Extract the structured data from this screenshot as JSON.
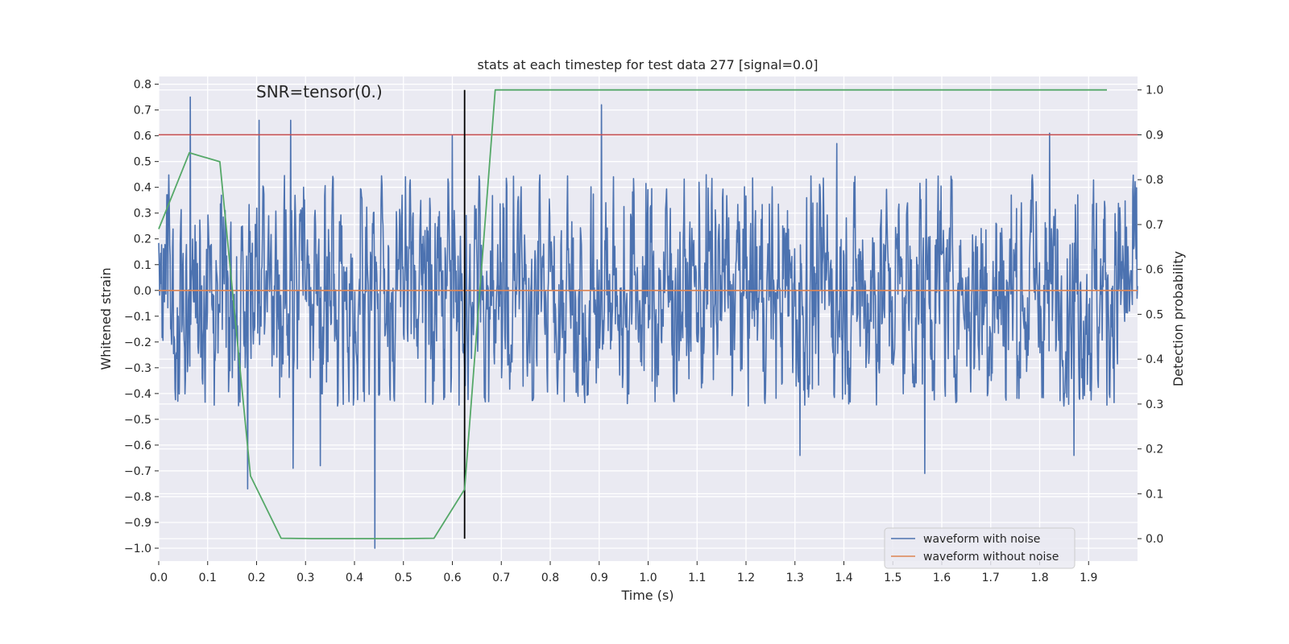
{
  "chart_data": {
    "type": "line",
    "title": "stats at each timestep for test data 277 [signal=0.0]",
    "annotation": "SNR=tensor(0.)",
    "xlabel": "Time (s)",
    "ylabel_left": "Whitened strain",
    "ylabel_right": "Detection probability",
    "xlim": [
      0.0,
      2.0
    ],
    "ylim_left": [
      -1.05,
      0.83
    ],
    "ylim_right": [
      -0.05,
      1.03
    ],
    "x_ticks": [
      "0.0",
      "0.1",
      "0.2",
      "0.3",
      "0.4",
      "0.5",
      "0.6",
      "0.7",
      "0.8",
      "0.9",
      "1.0",
      "1.1",
      "1.2",
      "1.3",
      "1.4",
      "1.5",
      "1.6",
      "1.7",
      "1.8",
      "1.9"
    ],
    "y_ticks_left": [
      "0.8",
      "0.7",
      "0.6",
      "0.5",
      "0.4",
      "0.3",
      "0.2",
      "0.1",
      "0.0",
      "−0.1",
      "−0.2",
      "−0.3",
      "−0.4",
      "−0.5",
      "−0.6",
      "−0.7",
      "−0.8",
      "−0.9",
      "−1.0"
    ],
    "y_ticks_right": [
      "1.0",
      "0.9",
      "0.8",
      "0.7",
      "0.6",
      "0.5",
      "0.4",
      "0.3",
      "0.2",
      "0.1",
      "0.0"
    ],
    "grid": true,
    "legend_position": "bottom-right",
    "series": [
      {
        "name": "waveform with noise",
        "axis": "left",
        "color": "#4c72b0",
        "x_range": [
          0.0,
          2.0
        ],
        "num_points": 2048,
        "amplitude_range": [
          -1.0,
          0.75
        ],
        "typical_range": [
          -0.45,
          0.45
        ],
        "notable_spikes": [
          {
            "x": 0.064,
            "y": 0.75
          },
          {
            "x": 0.205,
            "y": 0.66
          },
          {
            "x": 0.27,
            "y": 0.66
          },
          {
            "x": 0.6,
            "y": 0.6
          },
          {
            "x": 0.905,
            "y": 0.72
          },
          {
            "x": 1.385,
            "y": 0.57
          },
          {
            "x": 1.82,
            "y": 0.61
          },
          {
            "x": 0.442,
            "y": -1.0
          },
          {
            "x": 0.182,
            "y": -0.77
          },
          {
            "x": 0.275,
            "y": -0.69
          },
          {
            "x": 0.33,
            "y": -0.68
          },
          {
            "x": 1.565,
            "y": -0.71
          },
          {
            "x": 1.31,
            "y": -0.64
          },
          {
            "x": 1.87,
            "y": -0.64
          }
        ]
      },
      {
        "name": "waveform without noise",
        "axis": "left",
        "color": "#dd8452",
        "x": [
          0.0,
          2.0
        ],
        "y": [
          0.0,
          0.0
        ]
      },
      {
        "axis": "right",
        "color": "#55a868",
        "x": [
          0.0,
          0.0625,
          0.125,
          0.1875,
          0.25,
          0.3125,
          0.375,
          0.4375,
          0.5,
          0.5625,
          0.625,
          0.6875,
          0.75,
          1.9375
        ],
        "y": [
          0.69,
          0.86,
          0.84,
          0.14,
          0.001,
          0.0,
          0.0,
          0.0,
          0.0,
          0.001,
          0.11,
          1.0,
          1.0,
          1.0
        ]
      }
    ],
    "reference_lines": [
      {
        "orientation": "horizontal",
        "axis": "right",
        "value": 0.9,
        "color": "#c44e52"
      },
      {
        "orientation": "vertical",
        "value": 0.625,
        "y_range_right": [
          0.0,
          1.0
        ],
        "color": "#000000"
      }
    ]
  }
}
